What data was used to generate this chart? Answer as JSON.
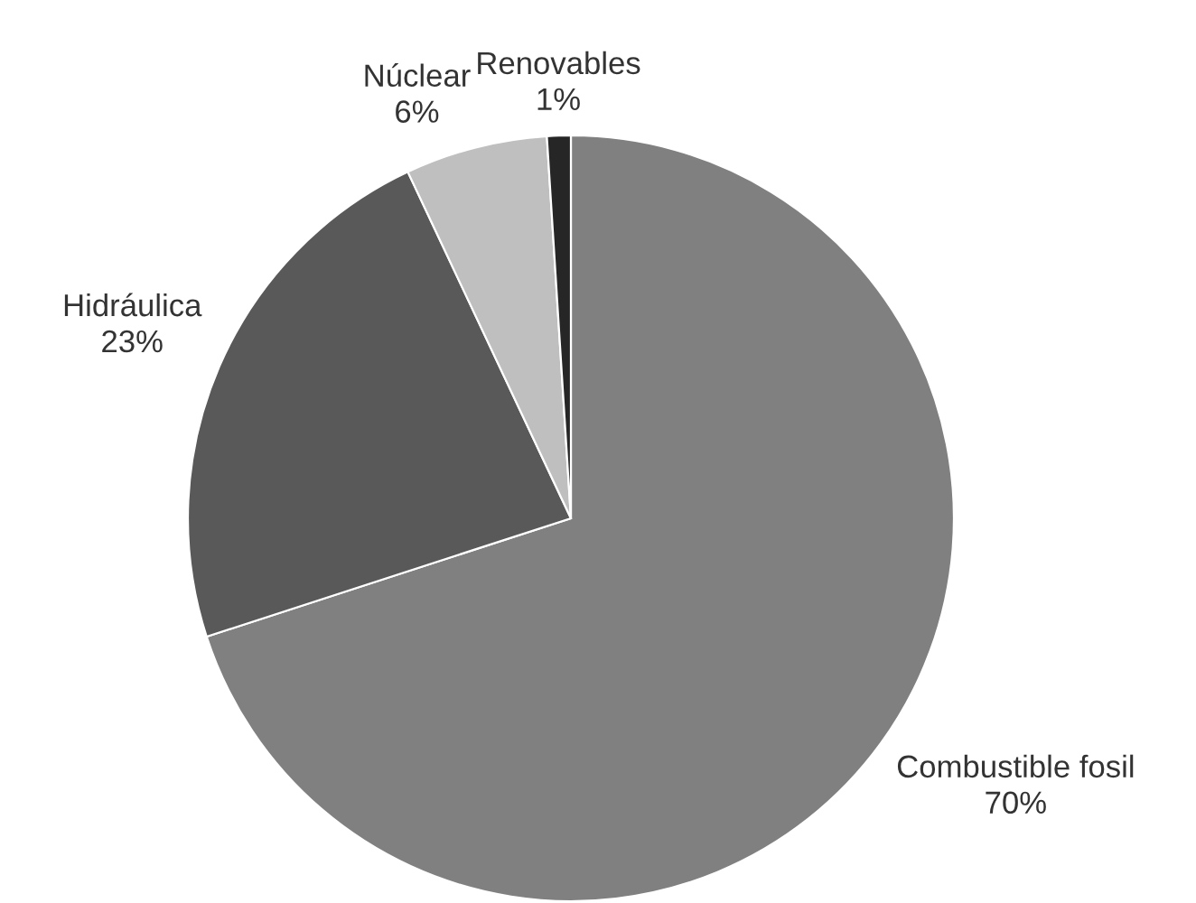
{
  "chart_data": {
    "type": "pie",
    "categories": [
      "Combustible fosil",
      "Hidráulica",
      "Núclear",
      "Renovables"
    ],
    "values": [
      70,
      23,
      6,
      1
    ],
    "colors": [
      "#808080",
      "#595959",
      "#bfbfbf",
      "#262626"
    ],
    "value_labels": [
      "70%",
      "23%",
      "6%",
      "1%"
    ]
  }
}
